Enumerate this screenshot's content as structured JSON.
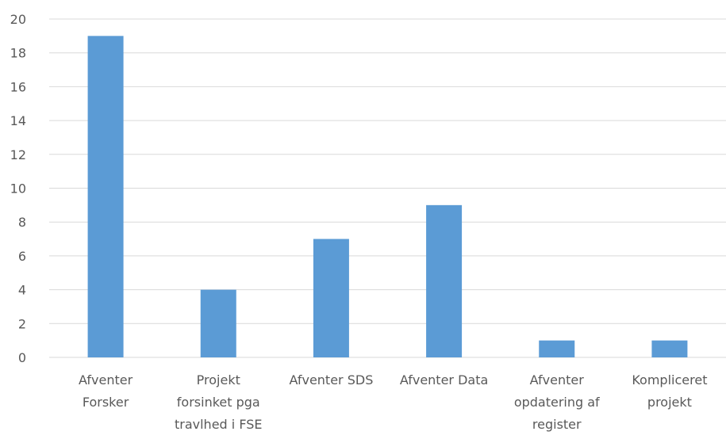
{
  "chart_data": {
    "type": "bar",
    "categories": [
      [
        "Afventer",
        "Forsker"
      ],
      [
        "Projekt",
        "forsinket pga",
        "travlhed i FSE"
      ],
      [
        "Afventer SDS"
      ],
      [
        "Afventer Data"
      ],
      [
        "Afventer",
        "opdatering af",
        "register"
      ],
      [
        "Kompliceret",
        "projekt"
      ]
    ],
    "values": [
      19,
      4,
      7,
      9,
      1,
      1
    ],
    "yticks": [
      "0",
      "2",
      "4",
      "6",
      "8",
      "10",
      "12",
      "14",
      "16",
      "18",
      "20"
    ],
    "ylim": [
      0,
      20
    ],
    "title": "",
    "xlabel": "",
    "ylabel": "",
    "grid": true,
    "bar_color": "#5b9bd5",
    "grid_color": "#d9d9d9",
    "text_color": "#595959"
  }
}
